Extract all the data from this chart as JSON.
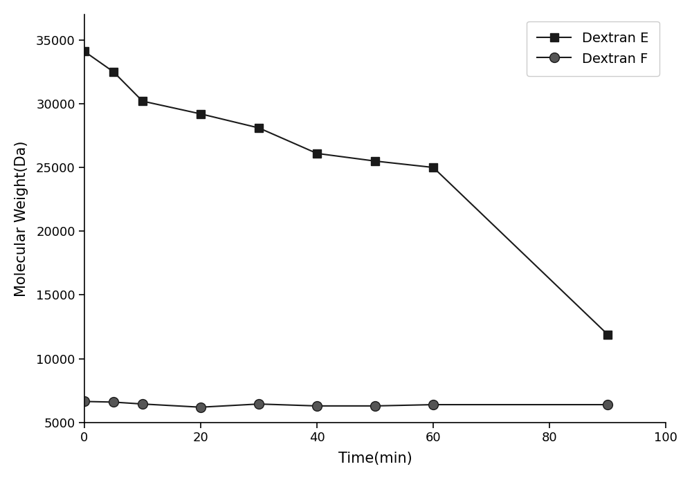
{
  "dextran_e_x": [
    0,
    5,
    10,
    20,
    30,
    40,
    50,
    60,
    90
  ],
  "dextran_e_y": [
    34100,
    32500,
    30200,
    29200,
    28100,
    26100,
    25500,
    25000,
    11900
  ],
  "dextran_f_x": [
    0,
    5,
    10,
    20,
    30,
    40,
    50,
    60,
    90
  ],
  "dextran_f_y": [
    6650,
    6600,
    6450,
    6200,
    6450,
    6300,
    6300,
    6400,
    6400
  ],
  "xlabel": "Time(min)",
  "ylabel": "Molecular Weight(Da)",
  "legend_e": "Dextran E",
  "legend_f": "Dextran F",
  "xlim": [
    0,
    100
  ],
  "ylim": [
    5000,
    37000
  ],
  "xticks": [
    0,
    20,
    40,
    60,
    80,
    100
  ],
  "yticks": [
    5000,
    10000,
    15000,
    20000,
    25000,
    30000,
    35000
  ],
  "line_color": "#1a1a1a",
  "marker_e": "s",
  "marker_f": "o",
  "marker_size_e": 9,
  "marker_size_f": 10,
  "linewidth": 1.5,
  "background_color": "#ffffff",
  "figsize": [
    10.0,
    6.94
  ],
  "dpi": 100
}
